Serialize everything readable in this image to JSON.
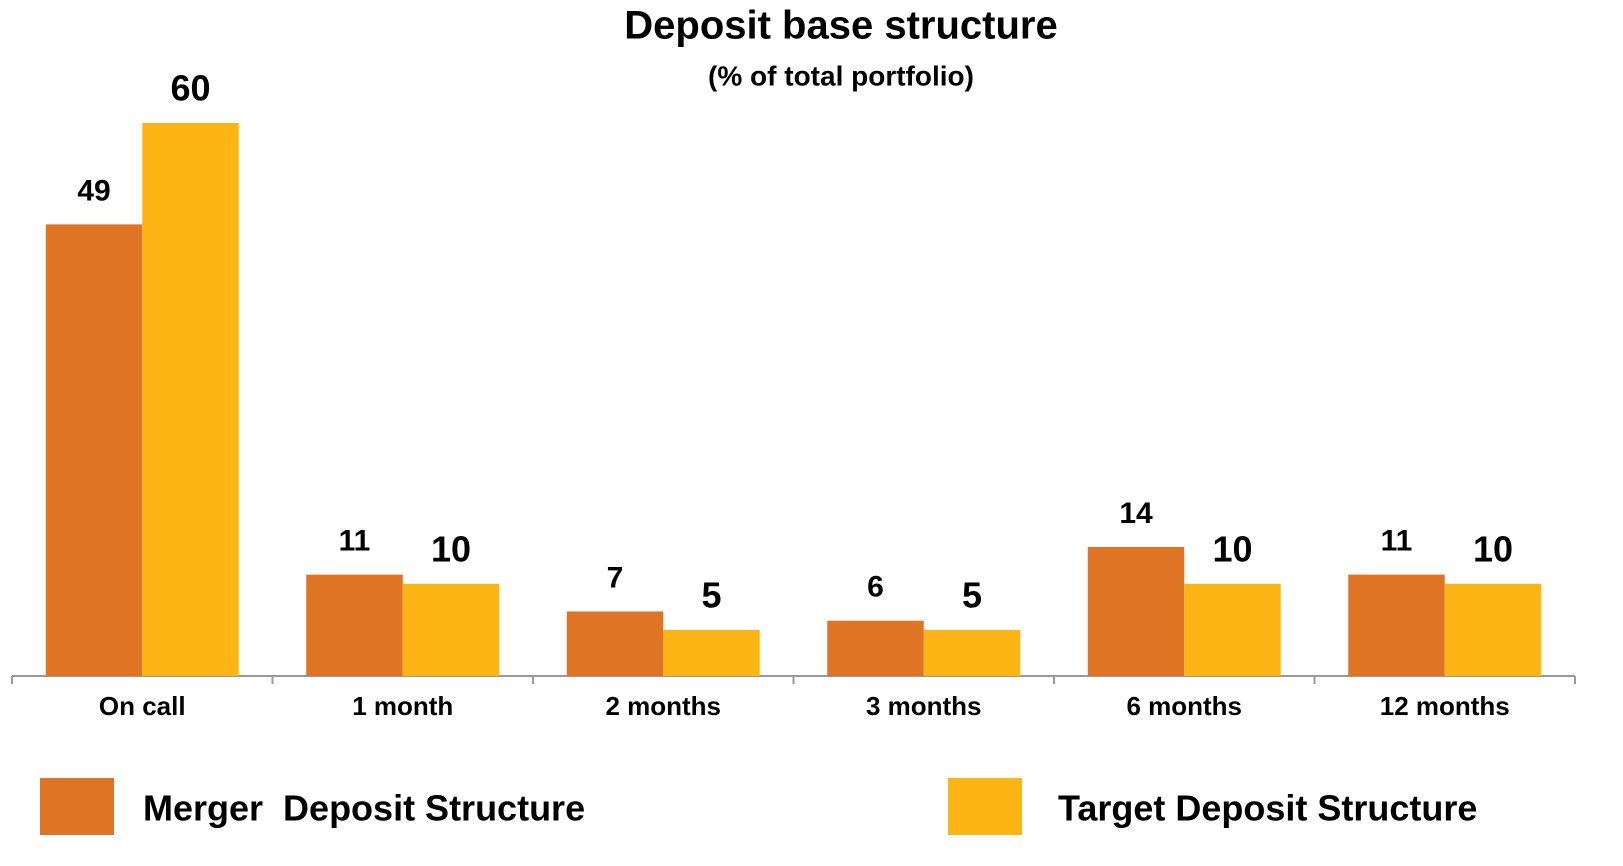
{
  "chart_data": {
    "type": "bar",
    "title": "Deposit base structure",
    "subtitle": "(% of total portfolio)",
    "categories": [
      "On call",
      "1 month",
      "2 months",
      "3 months",
      "6 months",
      "12 months"
    ],
    "series": [
      {
        "name": "Merger  Deposit Structure",
        "color": "#e07425",
        "values": [
          49,
          11,
          7,
          6,
          14,
          11
        ]
      },
      {
        "name": "Target Deposit Structure",
        "color": "#fdb515",
        "values": [
          60,
          10,
          5,
          5,
          10,
          10
        ]
      }
    ],
    "ylim": [
      0,
      60
    ]
  }
}
